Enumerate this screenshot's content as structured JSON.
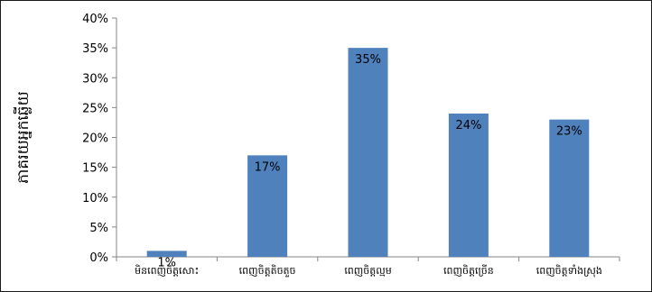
{
  "chart_data": {
    "type": "bar",
    "categories": [
      "មិនពេញចិត្តសោះ",
      "ពេញចិត្តតិចតួច",
      "ពេញចិត្តល្មម",
      "ពេញចិត្តច្រើន",
      "ពេញចិត្តទាំងស្រុង"
    ],
    "values": [
      1,
      17,
      35,
      24,
      23
    ],
    "data_labels": [
      "1%",
      "17%",
      "35%",
      "24%",
      "23%"
    ],
    "ylabel": "ភាគរយអ្នកឆ្លើយ",
    "xlabel": "",
    "ylim": [
      0,
      40
    ],
    "yticks": [
      0,
      5,
      10,
      15,
      20,
      25,
      30,
      35,
      40
    ],
    "ytick_labels": [
      "0%",
      "5%",
      "10%",
      "15%",
      "20%",
      "25%",
      "30%",
      "35%",
      "40%"
    ],
    "grid": false,
    "legend": "none",
    "bar_color": "#4f81bd",
    "axis_color": "#868686"
  }
}
